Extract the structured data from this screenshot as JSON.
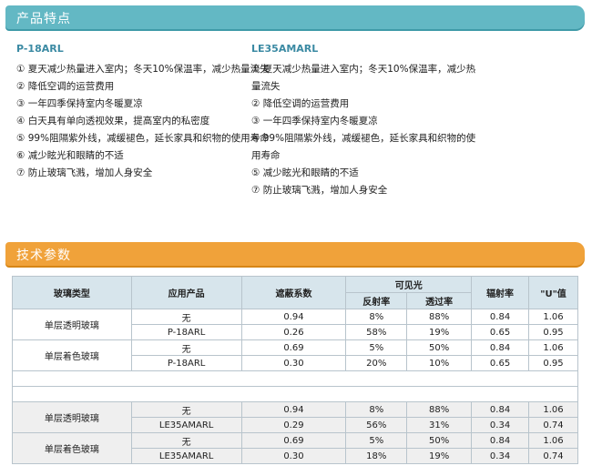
{
  "section1": {
    "title": "产品特点"
  },
  "products": [
    {
      "model": "P-18ARL",
      "features": [
        "① 夏天减少热量进入室内；冬天10%保温率，减少热量流失",
        "② 降低空调的运营费用",
        "③ 一年四季保持室内冬暖夏凉",
        "④ 白天具有单向透视效果，提高室内的私密度",
        "⑤ 99%阻隔紫外线，减缓褪色，延长家具和织物的使用寿命",
        "⑥ 减少眩光和眼睛的不适",
        "⑦ 防止玻璃飞溅，增加人身安全"
      ]
    },
    {
      "model": "LE35AMARL",
      "features": [
        "① 夏天减少热量进入室内；冬天10%保温率，减少热量流失",
        "② 降低空调的运营费用",
        "③ 一年四季保持室内冬暖夏凉",
        "④ 99%阻隔紫外线，减缓褪色，延长家具和织物的使用寿命",
        "⑤ 减少眩光和眼睛的不适",
        "⑦ 防止玻璃飞溅，增加人身安全"
      ]
    }
  ],
  "section2": {
    "title": "技术参数"
  },
  "table": {
    "headers": {
      "glass_type": "玻璃类型",
      "product": "应用产品",
      "shading": "遮蔽系数",
      "visible": "可见光",
      "reflectance": "反射率",
      "transmittance": "透过率",
      "emissivity": "辐射率",
      "u_value": "\"U\"值"
    },
    "group1": [
      {
        "glass": "单层透明玻璃",
        "rows": [
          [
            "无",
            "0.94",
            "8%",
            "88%",
            "0.84",
            "1.06"
          ],
          [
            "P-18ARL",
            "0.26",
            "58%",
            "19%",
            "0.65",
            "0.95"
          ]
        ]
      },
      {
        "glass": "单层着色玻璃",
        "rows": [
          [
            "无",
            "0.69",
            "5%",
            "50%",
            "0.84",
            "1.06"
          ],
          [
            "P-18ARL",
            "0.30",
            "20%",
            "10%",
            "0.65",
            "0.95"
          ]
        ]
      }
    ],
    "group2": [
      {
        "glass": "单层透明玻璃",
        "rows": [
          [
            "无",
            "0.94",
            "8%",
            "88%",
            "0.84",
            "1.06"
          ],
          [
            "LE35AMARL",
            "0.29",
            "56%",
            "31%",
            "0.34",
            "0.74"
          ]
        ]
      },
      {
        "glass": "单层着色玻璃",
        "rows": [
          [
            "无",
            "0.69",
            "5%",
            "50%",
            "0.84",
            "1.06"
          ],
          [
            "LE35AMARL",
            "0.30",
            "18%",
            "19%",
            "0.34",
            "0.74"
          ]
        ]
      }
    ]
  }
}
